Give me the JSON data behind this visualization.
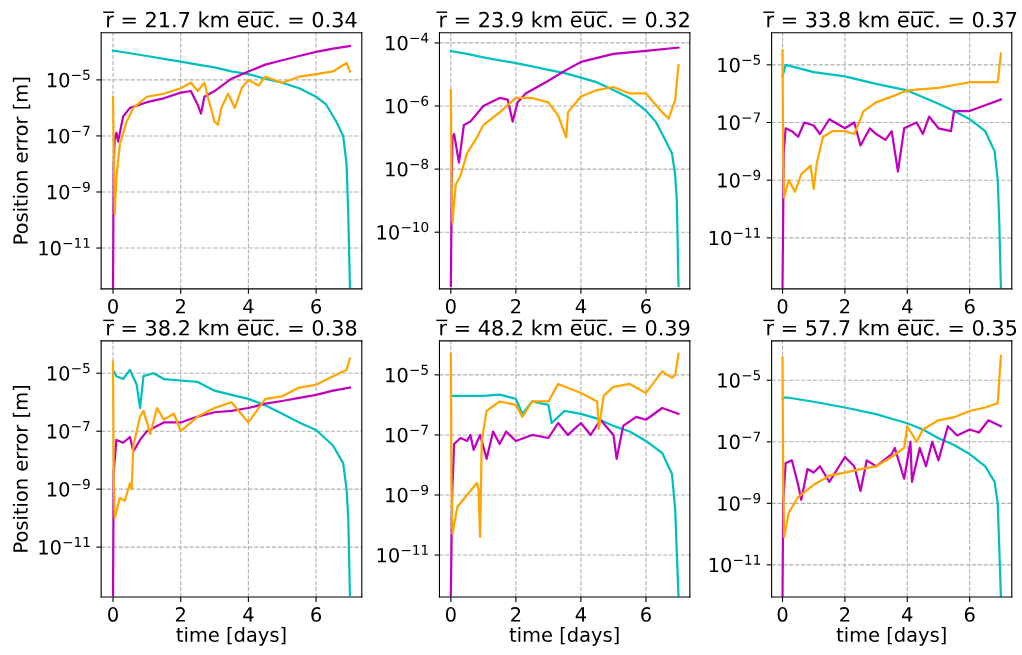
{
  "chart_data": [
    {
      "type": "line",
      "title": "r̅ = 21.7 km e̅u̅c̅. = 0.34",
      "ylabel": "Position error [m]",
      "log": true,
      "grid": true,
      "xlim": [
        -0.35,
        7.35
      ],
      "xticks": [
        0,
        2,
        4,
        6
      ],
      "ylim": [
        3.5e-13,
        0.00048
      ],
      "yticks": [
        {
          "value": 1e-05,
          "label": "10$^{−5}$"
        },
        {
          "value": 1e-07,
          "label": "10$^{−7}$"
        },
        {
          "value": 1e-09,
          "label": "10$^{−9}$"
        },
        {
          "value": 1e-11,
          "label": "10$^{−11}$"
        }
      ],
      "series": [
        {
          "color": "#00bfbf",
          "x": [
            0,
            0.5,
            1,
            1.5,
            2,
            2.5,
            3,
            3.5,
            4,
            4.5,
            5,
            5.5,
            6,
            6.3,
            6.6,
            6.8,
            6.9,
            6.95,
            7.0
          ],
          "values": [
            0.00011,
            8.9e-05,
            7.1e-05,
            5.6e-05,
            4.5e-05,
            3.5e-05,
            2.8e-05,
            2e-05,
            1.6e-05,
            1.1e-05,
            7.9e-06,
            5e-06,
            2.5e-06,
            1.3e-06,
            3.2e-07,
            1e-07,
            1e-08,
            1.6e-10,
            4e-13
          ]
        },
        {
          "color": "#bf00bf",
          "x": [
            0,
            0.02,
            0.05,
            0.1,
            0.15,
            0.3,
            0.5,
            1,
            1.5,
            2,
            2.3,
            2.5,
            2.6,
            2.7,
            3,
            3.5,
            4,
            4.5,
            5,
            5.5,
            6,
            6.5,
            7
          ],
          "values": [
            4e-13,
            1e-08,
            7.9e-08,
            1.3e-07,
            6.3e-08,
            5e-07,
            1e-06,
            1.6e-06,
            2.2e-06,
            3.5e-06,
            4e-06,
            1.3e-06,
            6.3e-07,
            2.5e-06,
            4e-06,
            1.1e-05,
            2e-05,
            3.5e-05,
            5e-05,
            7.1e-05,
            0.0001,
            0.00013,
            0.00016
          ]
        },
        {
          "color": "#ffa500",
          "x": [
            0,
            0.02,
            0.05,
            0.1,
            0.2,
            0.4,
            0.6,
            1,
            1.5,
            2,
            2.3,
            2.5,
            2.7,
            2.8,
            3,
            3.1,
            3.2,
            3.4,
            3.6,
            3.8,
            4,
            4.3,
            4.5,
            5,
            5.5,
            6,
            6.5,
            6.9,
            7
          ],
          "values": [
            2.5e-06,
            3.2e-08,
            1.6e-10,
            3.2e-09,
            5e-08,
            3.2e-07,
            1e-06,
            2.5e-06,
            3.2e-06,
            5e-06,
            7.9e-06,
            4e-06,
            7.9e-06,
            2.5e-06,
            3.2e-07,
            2.5e-07,
            1e-06,
            3.2e-06,
            1e-06,
            5e-06,
            1e-05,
            6.3e-06,
            1.3e-05,
            7.9e-06,
            1.3e-05,
            1.6e-05,
            2e-05,
            4e-05,
            2e-05
          ]
        }
      ]
    },
    {
      "type": "line",
      "title": "r̅ = 23.9 km e̅u̅c̅. = 0.32",
      "log": true,
      "grid": true,
      "xlim": [
        -0.35,
        7.35
      ],
      "xticks": [
        0,
        2,
        4,
        6
      ],
      "ylim": [
        1.6e-12,
        0.00021
      ],
      "yticks": [
        {
          "value": 0.0001,
          "label": "10$^{−4}$"
        },
        {
          "value": 1e-06,
          "label": "10$^{−6}$"
        },
        {
          "value": 1e-08,
          "label": "10$^{−8}$"
        },
        {
          "value": 1e-10,
          "label": "10$^{−10}$"
        }
      ],
      "series": [
        {
          "color": "#00bfbf",
          "x": [
            0,
            0.5,
            1,
            1.5,
            2,
            2.5,
            3,
            3.5,
            4,
            4.5,
            5,
            5.5,
            6,
            6.3,
            6.5,
            6.8,
            6.9,
            6.95,
            7.0
          ],
          "values": [
            5.5e-05,
            4.5e-05,
            3.5e-05,
            2.8e-05,
            2.3e-05,
            1.8e-05,
            1.4e-05,
            1.1e-05,
            7.9e-06,
            5.6e-06,
            3.2e-06,
            1.8e-06,
            7.1e-07,
            3.2e-07,
            1.3e-07,
            3.2e-08,
            6.3e-09,
            1e-09,
            2e-12
          ]
        },
        {
          "color": "#bf00bf",
          "x": [
            0,
            0.035,
            0.05,
            0.1,
            0.25,
            0.4,
            0.6,
            1,
            1.5,
            1.75,
            1.9,
            2.05,
            2.3,
            3,
            3.5,
            4,
            5,
            6,
            7
          ],
          "values": [
            2e-12,
            1e-08,
            1e-07,
            1.3e-07,
            1.6e-08,
            2.5e-07,
            3.2e-07,
            1e-06,
            1.8e-06,
            1.6e-06,
            3.2e-07,
            1.3e-06,
            2.5e-06,
            6.3e-06,
            1.3e-05,
            2.5e-05,
            4.5e-05,
            5.6e-05,
            7.1e-05
          ]
        },
        {
          "color": "#ffa500",
          "x": [
            0,
            0.02,
            0.05,
            0.15,
            0.3,
            0.5,
            0.8,
            1,
            1.5,
            2,
            2.5,
            3,
            3.3,
            3.55,
            3.6,
            4,
            4.5,
            5,
            5.5,
            6,
            6.5,
            6.7,
            6.9,
            7
          ],
          "values": [
            3.2e-06,
            1e-08,
            2e-10,
            3.2e-09,
            6.3e-09,
            3.2e-08,
            1e-07,
            2.5e-07,
            6.3e-07,
            1.8e-06,
            1.8e-06,
            1.3e-06,
            5e-07,
            1e-07,
            6.3e-07,
            2e-06,
            3.2e-06,
            4e-06,
            2.5e-06,
            2.5e-06,
            6.3e-07,
            4e-07,
            1.6e-06,
            2e-05
          ]
        }
      ]
    },
    {
      "type": "line",
      "title": "r̅ = 33.8 km e̅u̅c̅. = 0.37",
      "log": true,
      "grid": true,
      "xlim": [
        -0.35,
        7.35
      ],
      "xticks": [
        0,
        2,
        4,
        6
      ],
      "ylim": [
        1.7e-13,
        0.00013
      ],
      "yticks": [
        {
          "value": 1e-05,
          "label": "10$^{−5}$"
        },
        {
          "value": 1e-07,
          "label": "10$^{−7}$"
        },
        {
          "value": 1e-09,
          "label": "10$^{−9}$"
        },
        {
          "value": 1e-11,
          "label": "10$^{−11}$"
        }
      ],
      "series": [
        {
          "color": "#00bfbf",
          "x": [
            0,
            0.1,
            1,
            2,
            3,
            4,
            5,
            5.5,
            6,
            6.5,
            6.8,
            6.9,
            6.95,
            7.0
          ],
          "values": [
            4e-06,
            1e-05,
            5.6e-06,
            4e-06,
            2.2e-06,
            1.3e-06,
            4.5e-07,
            2.5e-07,
            1.3e-07,
            5e-08,
            1e-08,
            1e-09,
            3.2e-11,
            2e-13
          ]
        },
        {
          "color": "#bf00bf",
          "x": [
            0,
            0.04,
            0.1,
            0.3,
            0.5,
            0.7,
            1,
            1.2,
            1.5,
            2,
            2.3,
            2.5,
            2.8,
            3,
            3.3,
            3.5,
            3.7,
            3.9,
            4.3,
            4.5,
            4.7,
            5,
            5.4,
            5.5,
            6,
            6.5,
            7
          ],
          "values": [
            2e-13,
            1e-08,
            6.3e-08,
            5e-08,
            3.2e-08,
            1e-07,
            7.9e-08,
            4e-08,
            1.3e-07,
            6.3e-08,
            1e-07,
            1.6e-08,
            6.3e-08,
            4e-08,
            2.5e-08,
            5e-08,
            2e-09,
            6.3e-08,
            1e-07,
            4e-08,
            1.6e-07,
            6.3e-08,
            5e-08,
            2.5e-07,
            2.5e-07,
            4e-07,
            6.3e-07
          ]
        },
        {
          "color": "#ffa500",
          "x": [
            0,
            0.02,
            0.05,
            0.2,
            0.4,
            0.6,
            0.9,
            1.0,
            1.1,
            1.3,
            1.6,
            2,
            2.3,
            2.6,
            3,
            3.5,
            4,
            5,
            6,
            6.9,
            7.0
          ],
          "values": [
            3.2e-05,
            1e-08,
            2.5e-10,
            1e-09,
            4e-10,
            1.6e-09,
            3.2e-09,
            5e-10,
            4e-09,
            3.2e-08,
            5e-08,
            5e-08,
            4e-08,
            2.5e-07,
            5e-07,
            7.9e-07,
            1.3e-06,
            1.6e-06,
            2.5e-06,
            2.5e-06,
            2.5e-05
          ]
        }
      ]
    },
    {
      "type": "line",
      "title": "r̅ = 38.2 km e̅u̅c̅. = 0.38",
      "xlabel": "time [days]",
      "ylabel": "Position error [m]",
      "log": true,
      "grid": true,
      "xlim": [
        -0.35,
        7.35
      ],
      "xticks": [
        0,
        2,
        4,
        6
      ],
      "ylim": [
        1.9e-13,
        0.00013
      ],
      "yticks": [
        {
          "value": 1e-05,
          "label": "10$^{−5}$"
        },
        {
          "value": 1e-07,
          "label": "10$^{−7}$"
        },
        {
          "value": 1e-09,
          "label": "10$^{−9}$"
        },
        {
          "value": 1e-11,
          "label": "10$^{−11}$"
        }
      ],
      "series": [
        {
          "color": "#00bfbf",
          "x": [
            0,
            0.1,
            0.3,
            0.5,
            0.7,
            0.8,
            0.9,
            1.2,
            1.5,
            2,
            2.5,
            3,
            3.5,
            4,
            4.5,
            5,
            5.5,
            6,
            6.5,
            6.8,
            6.9,
            6.95,
            7
          ],
          "values": [
            1.3e-05,
            7.9e-06,
            6.3e-06,
            1.3e-05,
            4e-06,
            6.3e-07,
            7.9e-06,
            1e-05,
            6.3e-06,
            5.6e-06,
            5e-06,
            2.5e-06,
            1.8e-06,
            1.3e-06,
            7.9e-07,
            4e-07,
            2e-07,
            1.1e-07,
            3.2e-08,
            7.9e-09,
            1e-09,
            1e-10,
            2.2e-13
          ]
        },
        {
          "color": "#bf00bf",
          "x": [
            0,
            0.02,
            0.1,
            0.3,
            0.5,
            0.6,
            0.8,
            1,
            1.5,
            2,
            2.5,
            3,
            3.5,
            4,
            4.5,
            5,
            5.5,
            6,
            6.5,
            7
          ],
          "values": [
            2.2e-13,
            4e-09,
            5e-08,
            4e-08,
            6.3e-08,
            2e-08,
            5e-08,
            1e-07,
            2e-07,
            2e-07,
            3.2e-07,
            4.5e-07,
            5e-07,
            6.3e-07,
            8.9e-07,
            1.1e-06,
            1.4e-06,
            1.8e-06,
            2.5e-06,
            3.2e-06
          ]
        },
        {
          "color": "#ffa500",
          "x": [
            0,
            0.02,
            0.05,
            0.2,
            0.35,
            0.5,
            0.55,
            0.6,
            0.8,
            0.9,
            1.1,
            1.3,
            1.5,
            1.8,
            2.0,
            2.5,
            3,
            3.5,
            4,
            4.5,
            5,
            5.5,
            6,
            6.5,
            6.9,
            7
          ],
          "values": [
            2.5e-05,
            3.2e-09,
            1e-10,
            5e-10,
            4e-10,
            1.6e-09,
            1e-09,
            3.2e-08,
            3.2e-07,
            5e-07,
            7.9e-08,
            6.3e-07,
            2.5e-07,
            4e-07,
            1e-07,
            3.2e-07,
            6.3e-07,
            1e-06,
            2e-07,
            1.3e-06,
            1.6e-06,
            3.2e-06,
            4e-06,
            7.9e-06,
            1.3e-05,
            3.2e-05
          ]
        }
      ]
    },
    {
      "type": "line",
      "title": "r̅ = 48.2 km e̅u̅c̅. = 0.39",
      "xlabel": "time [days]",
      "log": true,
      "grid": true,
      "xlim": [
        -0.35,
        7.35
      ],
      "xticks": [
        0,
        2,
        4,
        6
      ],
      "ylim": [
        4e-13,
        0.000135
      ],
      "yticks": [
        {
          "value": 1e-05,
          "label": "10$^{−5}$"
        },
        {
          "value": 1e-07,
          "label": "10$^{−7}$"
        },
        {
          "value": 1e-09,
          "label": "10$^{−9}$"
        },
        {
          "value": 1e-11,
          "label": "10$^{−11}$"
        }
      ],
      "series": [
        {
          "color": "#00bfbf",
          "x": [
            0,
            0.5,
            1,
            1.5,
            2,
            2.2,
            2.5,
            3,
            3.1,
            3.5,
            4,
            4.5,
            5,
            5.5,
            6,
            6.5,
            6.8,
            6.9,
            7
          ],
          "values": [
            2e-06,
            2e-06,
            2e-06,
            2.2e-06,
            1.6e-06,
            5e-07,
            1.3e-06,
            1e-06,
            2.5e-07,
            6.3e-07,
            5e-07,
            3.5e-07,
            2e-07,
            1.3e-07,
            6.3e-08,
            2.5e-08,
            5e-09,
            3.2e-10,
            4.5e-13
          ]
        },
        {
          "color": "#bf00bf",
          "x": [
            0,
            0.04,
            0.1,
            0.3,
            0.5,
            0.6,
            0.7,
            0.9,
            1.1,
            1.3,
            1.5,
            1.7,
            2,
            2.5,
            3,
            3.3,
            3.6,
            4,
            4.3,
            4.6,
            5,
            5.1,
            5.3,
            5.7,
            6,
            6.5,
            7
          ],
          "values": [
            4.5e-13,
            1e-09,
            5e-08,
            7.9e-08,
            6.3e-08,
            1e-07,
            3.2e-08,
            1e-07,
            1.6e-08,
            1.3e-07,
            5e-08,
            1.3e-07,
            6.3e-08,
            1e-07,
            7.9e-08,
            2.5e-07,
            1e-07,
            2.5e-07,
            1e-07,
            3.2e-07,
            1e-07,
            1.6e-08,
            2e-07,
            4e-07,
            3.2e-07,
            7.9e-07,
            5e-07
          ]
        },
        {
          "color": "#ffa500",
          "x": [
            0,
            0.02,
            0.05,
            0.2,
            0.5,
            0.8,
            0.85,
            0.9,
            0.95,
            1.1,
            1.5,
            2,
            2.2,
            2.5,
            3,
            3.3,
            4,
            4.5,
            4.55,
            4.7,
            5,
            5.5,
            6,
            6.5,
            6.8,
            6.9,
            7
          ],
          "values": [
            5e-05,
            3.2e-09,
            5e-11,
            4e-10,
            1e-09,
            2.5e-09,
            1.6e-09,
            4e-11,
            6.3e-08,
            6.3e-07,
            1.3e-06,
            1e-06,
            4e-07,
            1.3e-06,
            1.3e-06,
            5e-06,
            2.5e-06,
            1.3e-06,
            1.6e-07,
            2e-06,
            4e-06,
            5e-06,
            2.5e-06,
            1.3e-05,
            7.9e-06,
            1e-05,
            5e-05
          ]
        }
      ]
    },
    {
      "type": "line",
      "title": "r̅ = 57.7 km e̅u̅c̅. = 0.35",
      "xlabel": "time [days]",
      "log": true,
      "grid": true,
      "xlim": [
        -0.35,
        7.35
      ],
      "xticks": [
        0,
        2,
        4,
        6
      ],
      "ylim": [
        9e-13,
        0.00019
      ],
      "yticks": [
        {
          "value": 1e-05,
          "label": "10$^{−5}$"
        },
        {
          "value": 1e-07,
          "label": "10$^{−7}$"
        },
        {
          "value": 1e-09,
          "label": "10$^{−9}$"
        },
        {
          "value": 1e-11,
          "label": "10$^{−11}$"
        }
      ],
      "series": [
        {
          "color": "#00bfbf",
          "x": [
            0,
            0.1,
            1,
            2,
            3,
            3.5,
            4,
            4.5,
            5,
            5.5,
            6,
            6.5,
            6.8,
            6.9,
            6.95,
            7
          ],
          "values": [
            2.5e-06,
            2.8e-06,
            2e-06,
            1.3e-06,
            7.9e-07,
            5.6e-07,
            4e-07,
            2.5e-07,
            1.3e-07,
            7.9e-08,
            4e-08,
            1.6e-08,
            5e-09,
            1e-09,
            3.2e-11,
            1e-12
          ]
        },
        {
          "color": "#bf00bf",
          "x": [
            0,
            0.02,
            0.1,
            0.3,
            0.5,
            0.6,
            0.8,
            1,
            1.2,
            1.5,
            2,
            2.3,
            2.5,
            2.7,
            3,
            3.5,
            3.6,
            3.9,
            4.1,
            4.15,
            4.4,
            4.6,
            4.8,
            5.0,
            5.3,
            5.6,
            6,
            6.3,
            6.6,
            7
          ],
          "values": [
            1e-12,
            1e-09,
            2e-08,
            2.5e-08,
            4e-09,
            1.3e-09,
            1.3e-08,
            1e-08,
            1.6e-08,
            5e-09,
            3.2e-08,
            1.6e-08,
            2.5e-09,
            2.5e-08,
            1.6e-08,
            4e-08,
            6.3e-08,
            6.3e-09,
            1e-07,
            5e-09,
            6.3e-08,
            1.6e-08,
            1e-07,
            2.5e-08,
            3.2e-07,
            1.6e-07,
            2.5e-07,
            2e-07,
            5e-07,
            3.2e-07
          ]
        },
        {
          "color": "#ffa500",
          "x": [
            0,
            0.02,
            0.05,
            0.2,
            0.5,
            1,
            1.5,
            2,
            2.5,
            3,
            3.5,
            3.9,
            4.0,
            4.3,
            4.5,
            5,
            5.5,
            6,
            6.5,
            6.9,
            7
          ],
          "values": [
            5.6e-05,
            1e-08,
            7.9e-11,
            5e-10,
            1.6e-09,
            4e-09,
            7.9e-09,
            1e-08,
            1.3e-08,
            1.6e-08,
            3.2e-08,
            6.3e-08,
            3.2e-07,
            1e-07,
            2.5e-07,
            5e-07,
            6.3e-07,
            1e-06,
            1.3e-06,
            1.8e-06,
            6.3e-05
          ]
        }
      ]
    }
  ]
}
